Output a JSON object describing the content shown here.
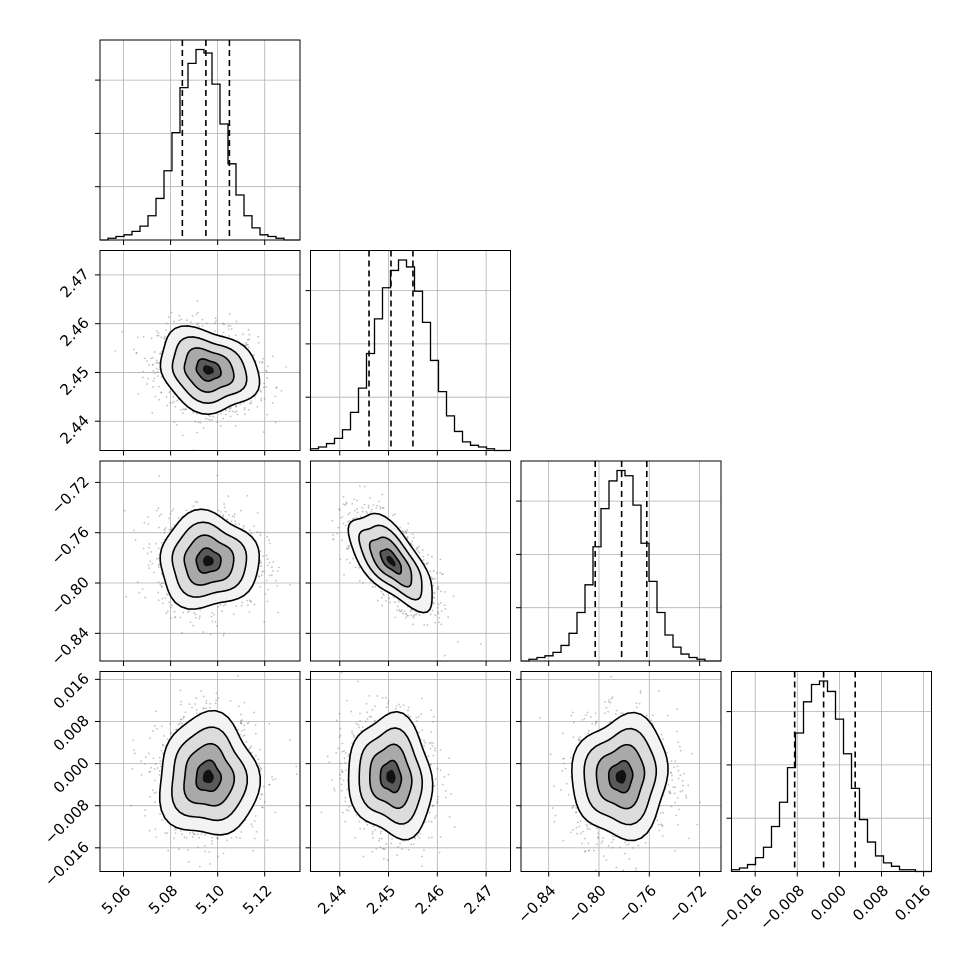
{
  "chart_data": {
    "type": "corner",
    "title": "",
    "n_params": 4,
    "grid": true,
    "parameters": [
      {
        "label": "",
        "range": [
          5.05,
          5.135
        ],
        "ticks": [
          5.06,
          5.08,
          5.1,
          5.12
        ],
        "tick_labels": [
          "5.06",
          "5.08",
          "5.10",
          "5.12"
        ],
        "mean": 5.096,
        "sigma": 0.0105,
        "quantiles": [
          5.085,
          5.095,
          5.105
        ]
      },
      {
        "label": "",
        "range": [
          2.434,
          2.475
        ],
        "ticks": [
          2.44,
          2.45,
          2.46,
          2.47
        ],
        "tick_labels": [
          "2.44",
          "2.45",
          "2.46",
          "2.47"
        ],
        "mean": 2.4505,
        "sigma": 0.0043,
        "quantiles": [
          2.446,
          2.4505,
          2.455
        ]
      },
      {
        "label": "",
        "range": [
          -0.862,
          -0.703
        ],
        "ticks": [
          -0.84,
          -0.8,
          -0.76,
          -0.72
        ],
        "tick_labels": [
          "−0.84",
          "−0.80",
          "−0.76",
          "−0.72"
        ],
        "mean": -0.7825,
        "sigma": 0.019,
        "quantiles": [
          -0.803,
          -0.782,
          -0.762
        ]
      },
      {
        "label": "",
        "range": [
          -0.0205,
          0.0175
        ],
        "ticks": [
          -0.016,
          -0.008,
          0.0,
          0.008,
          0.016
        ],
        "tick_labels": [
          "−0.016",
          "−0.008",
          "0.000",
          "0.008",
          "0.016"
        ],
        "mean": -0.0025,
        "sigma": 0.0058,
        "quantiles": [
          -0.0085,
          -0.003,
          0.003
        ]
      }
    ],
    "histograms": [
      {
        "param": 0,
        "bin_edges_range": [
          5.05,
          5.135
        ],
        "counts": [
          0,
          1,
          2,
          3,
          5,
          8,
          14,
          24,
          40,
          62,
          88,
          102,
          110,
          108,
          90,
          67,
          44,
          26,
          14,
          7,
          3,
          2,
          1,
          0,
          0
        ]
      },
      {
        "param": 1,
        "bin_edges_range": [
          2.434,
          2.475
        ],
        "counts": [
          1,
          2,
          4,
          7,
          12,
          22,
          36,
          56,
          76,
          94,
          104,
          110,
          106,
          92,
          74,
          52,
          34,
          20,
          11,
          5,
          3,
          2,
          1,
          0,
          0
        ]
      },
      {
        "param": 2,
        "bin_edges_range": [
          -0.862,
          -0.703
        ],
        "counts": [
          0,
          1,
          2,
          3,
          5,
          9,
          16,
          28,
          44,
          66,
          88,
          104,
          110,
          107,
          90,
          68,
          46,
          28,
          15,
          8,
          4,
          2,
          1,
          0,
          0
        ]
      },
      {
        "param": 3,
        "bin_edges_range": [
          -0.0205,
          0.0175
        ],
        "counts": [
          1,
          2,
          4,
          8,
          14,
          26,
          40,
          60,
          80,
          98,
          108,
          110,
          104,
          88,
          68,
          48,
          30,
          17,
          9,
          5,
          3,
          1,
          1,
          0,
          0
        ]
      }
    ],
    "correlations": [
      {
        "x_param": 0,
        "y_param": 1,
        "rho": -0.2
      },
      {
        "x_param": 0,
        "y_param": 2,
        "rho": 0.0
      },
      {
        "x_param": 1,
        "y_param": 2,
        "rho": -0.65
      },
      {
        "x_param": 0,
        "y_param": 3,
        "rho": 0.0
      },
      {
        "x_param": 1,
        "y_param": 3,
        "rho": -0.1
      },
      {
        "x_param": 2,
        "y_param": 3,
        "rho": 0.05
      }
    ],
    "contour_levels_sigma": [
      0.5,
      1.0,
      1.5,
      2.0
    ],
    "colors": {
      "line": "#000000",
      "grid": "#b0b0b0",
      "scatter": "#777777",
      "density_max": "#000000"
    }
  }
}
